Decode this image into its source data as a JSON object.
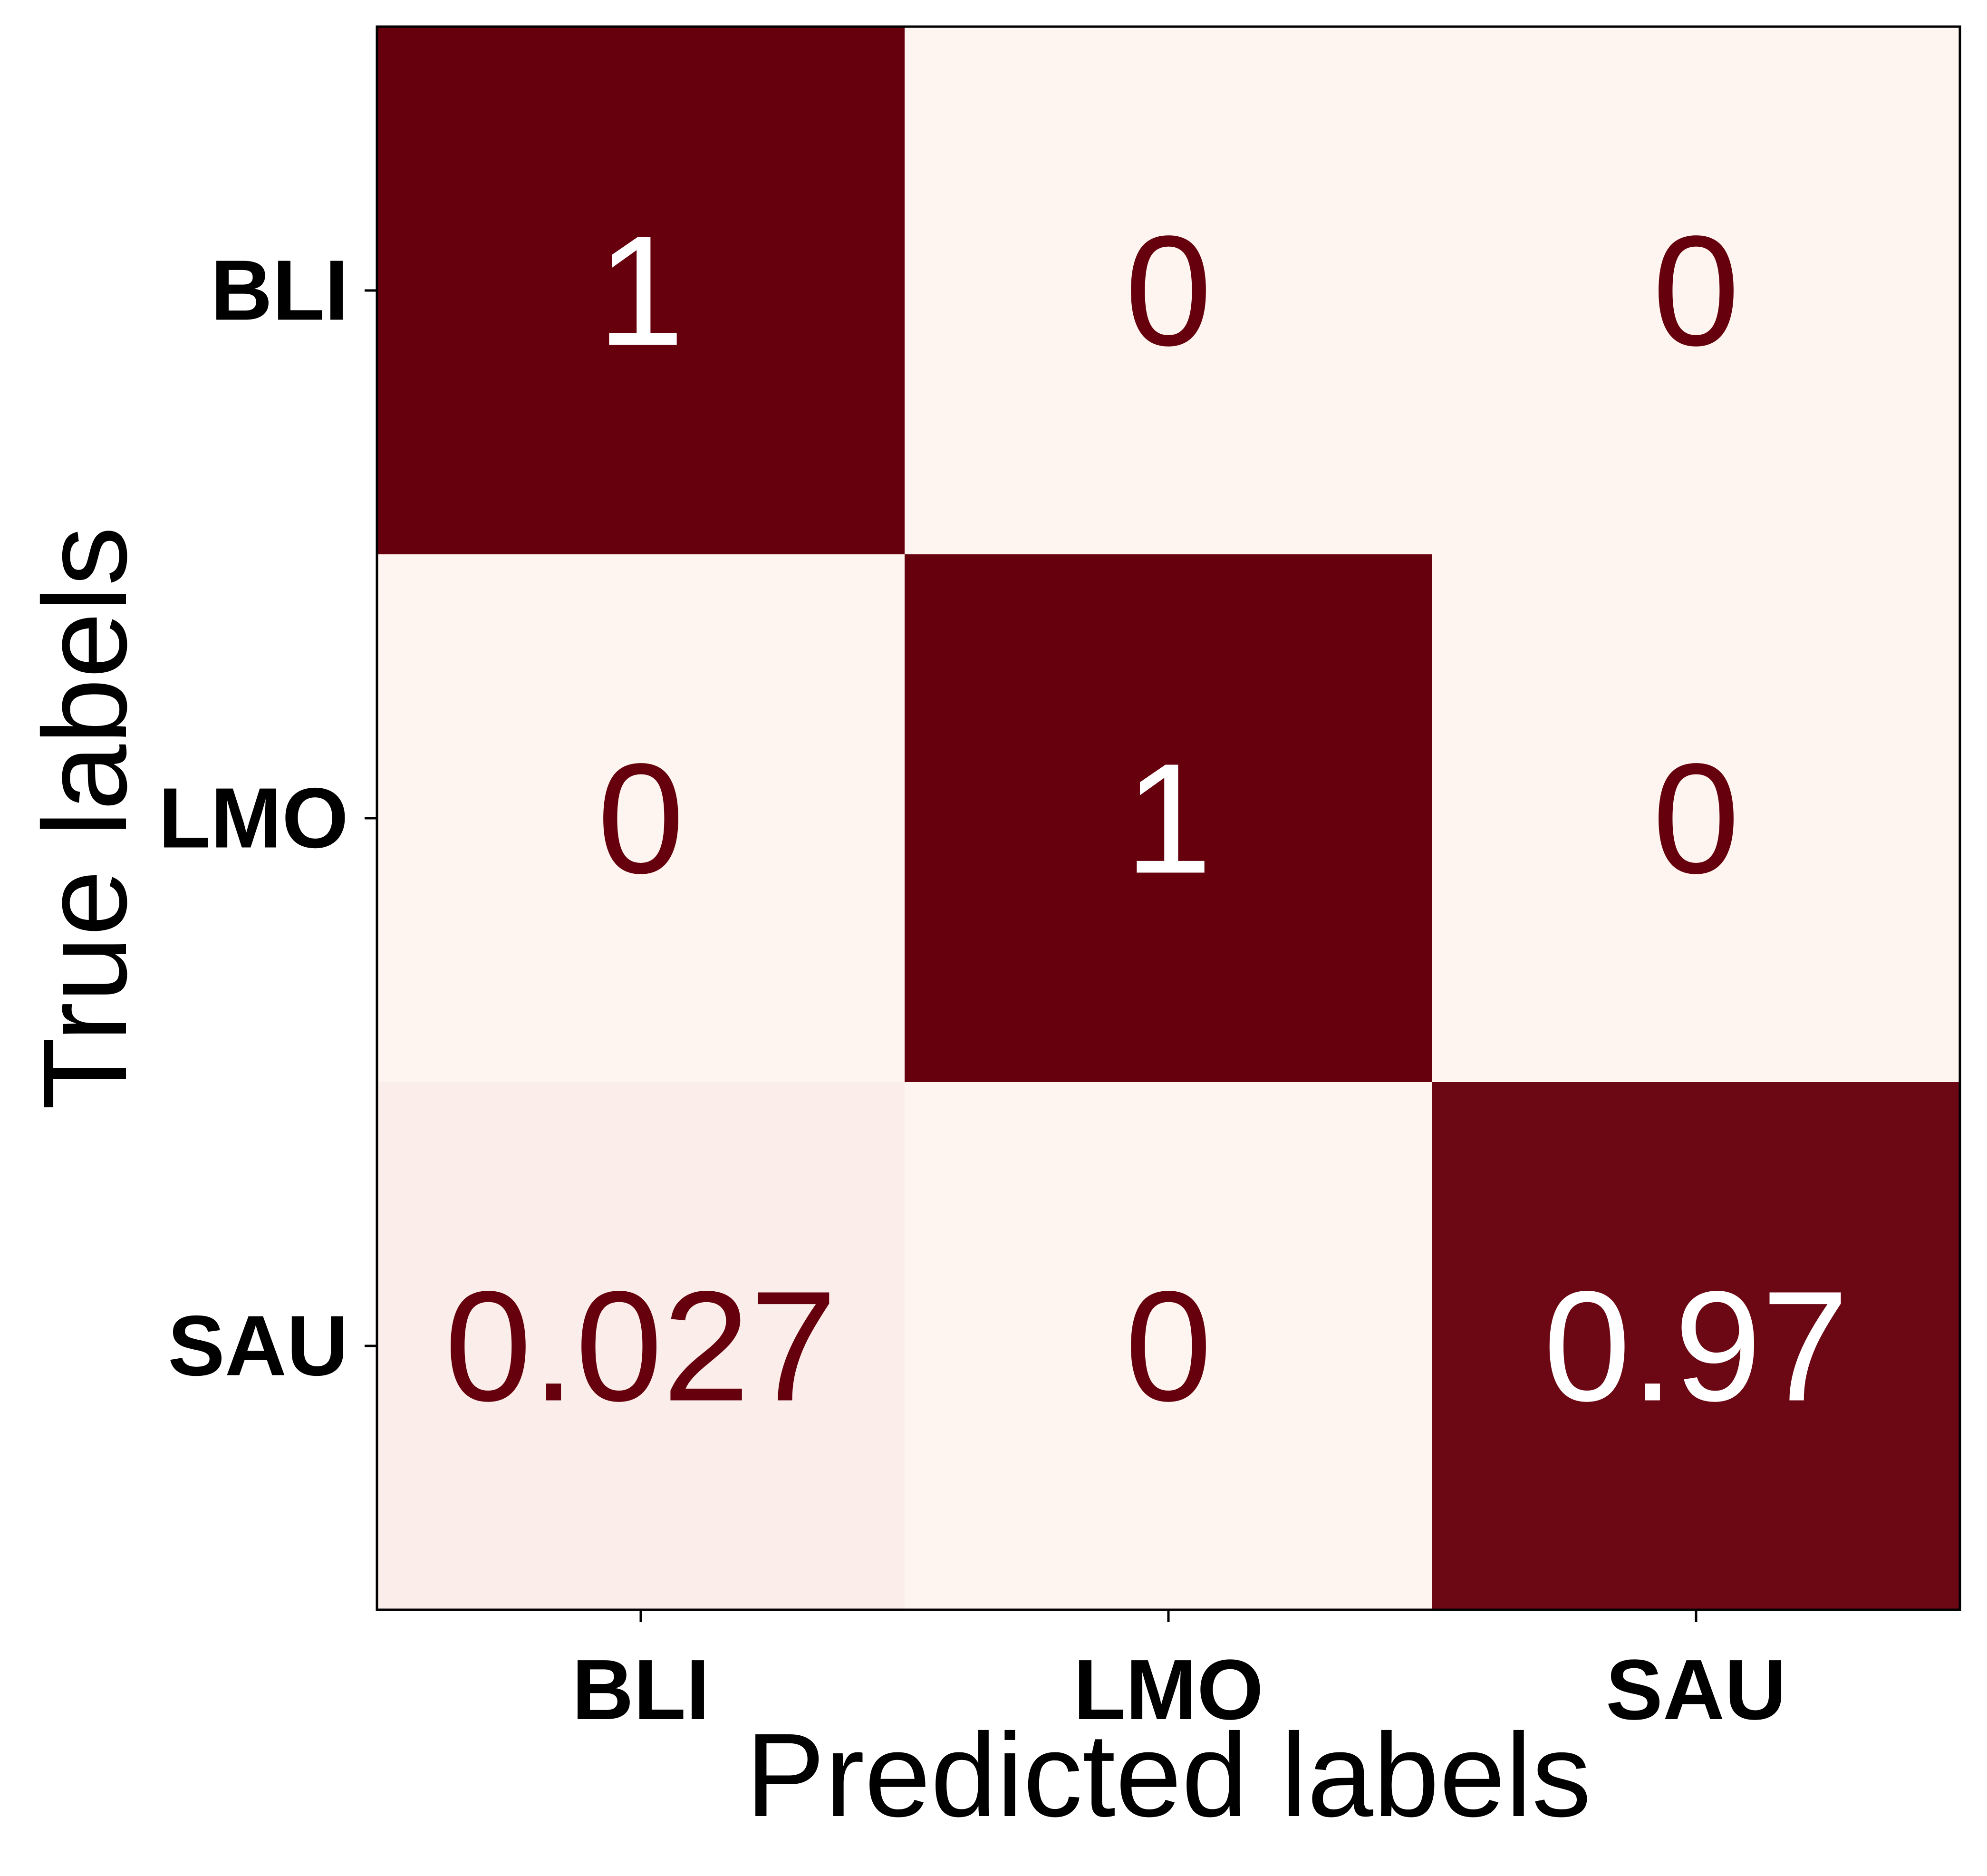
{
  "chart_data": {
    "type": "heatmap",
    "title": "",
    "xlabel": "Predicted labels",
    "ylabel": "True labels",
    "x_categories": [
      "BLI",
      "LMO",
      "SAU"
    ],
    "y_categories": [
      "BLI",
      "LMO",
      "SAU"
    ],
    "values": [
      [
        1,
        0,
        0
      ],
      [
        0,
        1,
        0
      ],
      [
        0.027,
        0,
        0.97
      ]
    ],
    "value_labels": [
      [
        "1",
        "0",
        "0"
      ],
      [
        "0",
        "1",
        "0"
      ],
      [
        "0.027",
        "0",
        "0.97"
      ]
    ],
    "value_range": [
      0,
      1
    ],
    "colormap": "Reds",
    "color_low": "#fff5f0",
    "color_high": "#67000d",
    "text_color_dark_cell": "#ffffff",
    "text_color_light_cell": "#67000d",
    "grid": false,
    "legend": "none"
  }
}
